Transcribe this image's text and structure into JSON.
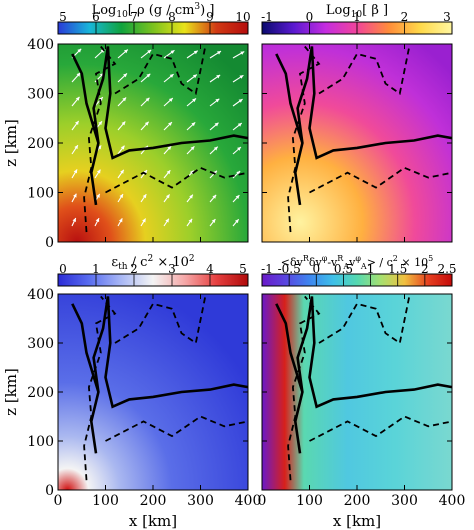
{
  "chart_data": [
    {
      "type": "heatmap",
      "title": "Log10[ ρ (g / cm3) ]",
      "colorbar": {
        "ticks": [
          5,
          6,
          7,
          8,
          9,
          10
        ],
        "range": [
          5,
          10
        ],
        "colors": [
          "#2a3ad8",
          "#18b7d9",
          "#10a33e",
          "#7bc21f",
          "#e9e21a",
          "#d13a14",
          "#b50d0d"
        ]
      },
      "xlabel": "",
      "ylabel": "z [km]",
      "ylim": [
        0,
        400
      ],
      "yticks": [
        0,
        100,
        200,
        300,
        400
      ],
      "xticks": [],
      "overlay": "velocity-arrows",
      "contours": [
        {
          "style": "solid",
          "points": [
            [
              80,
              75
            ],
            [
              70,
              140
            ],
            [
              85,
              200
            ],
            [
              75,
              270
            ],
            [
              95,
              330
            ],
            [
              105,
              395
            ],
            [
              110,
              300
            ],
            [
              100,
              230
            ],
            [
              115,
              170
            ],
            [
              150,
              185
            ],
            [
              200,
              190
            ],
            [
              260,
              200
            ],
            [
              320,
              205
            ],
            [
              370,
              215
            ],
            [
              400,
              210
            ]
          ]
        },
        {
          "style": "solid",
          "points": [
            [
              85,
              200
            ],
            [
              60,
              280
            ],
            [
              50,
              340
            ],
            [
              30,
              380
            ]
          ]
        },
        {
          "style": "dashed",
          "points": [
            [
              60,
              20
            ],
            [
              55,
              90
            ],
            [
              70,
              150
            ],
            [
              65,
              210
            ],
            [
              90,
              280
            ],
            [
              80,
              340
            ],
            [
              120,
              360
            ],
            [
              90,
              395
            ]
          ]
        },
        {
          "style": "dashed",
          "points": [
            [
              100,
              100
            ],
            [
              180,
              140
            ],
            [
              240,
              110
            ],
            [
              300,
              150
            ],
            [
              350,
              130
            ],
            [
              400,
              140
            ]
          ]
        },
        {
          "style": "dashed",
          "points": [
            [
              120,
              300
            ],
            [
              170,
              330
            ],
            [
              200,
              380
            ],
            [
              240,
              370
            ],
            [
              260,
              320
            ],
            [
              290,
              300
            ],
            [
              310,
              395
            ]
          ]
        }
      ]
    },
    {
      "type": "heatmap",
      "title": "Log10[ β ]",
      "colorbar": {
        "ticks": [
          -1,
          0,
          1,
          2,
          3
        ],
        "range": [
          -1,
          3
        ],
        "colors": [
          "#0a0a6e",
          "#5a1ad0",
          "#c42ce0",
          "#f2449a",
          "#ff8c3a",
          "#ffd94a",
          "#fff6a0"
        ]
      },
      "xlabel": "",
      "ylabel": "",
      "ylim": [
        0,
        400
      ],
      "xticks": [],
      "yticks": []
    },
    {
      "type": "heatmap",
      "title": "εth / c2 × 102",
      "colorbar": {
        "ticks": [
          0,
          1,
          2,
          3,
          4,
          5
        ],
        "range": [
          0,
          5
        ],
        "colors": [
          "#2b2bd6",
          "#5a6ef0",
          "#a9b8f5",
          "#f4f4f4",
          "#f5a8a8",
          "#e64040",
          "#b00a0a"
        ]
      },
      "xlabel": "x [km]",
      "ylabel": "z [km]",
      "xlim": [
        0,
        400
      ],
      "ylim": [
        0,
        400
      ],
      "xticks": [
        0,
        100,
        200,
        300,
        400
      ],
      "yticks": [
        0,
        100,
        200,
        300,
        400
      ]
    },
    {
      "type": "heatmap",
      "title": "<δvRδvφ-vRAvφA> / c2 × 105",
      "colorbar": {
        "ticks": [
          -1,
          -0.5,
          0,
          0.5,
          1,
          1.5,
          2,
          2.5
        ],
        "range": [
          -1,
          2.5
        ],
        "colors": [
          "#6a1ac8",
          "#5a46e0",
          "#3e86f0",
          "#3ec0e8",
          "#54d8b0",
          "#a6e070",
          "#f0c040",
          "#e64020",
          "#c40a0a"
        ]
      },
      "xlabel": "x [km]",
      "ylabel": "",
      "xlim": [
        0,
        400
      ],
      "ylim": [
        0,
        400
      ],
      "xticks": [
        0,
        100,
        200,
        300,
        400
      ],
      "yticks": []
    }
  ]
}
